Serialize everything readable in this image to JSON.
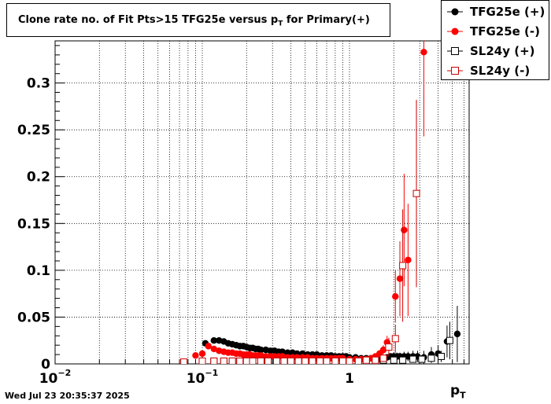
{
  "chart_data": {
    "type": "scatter",
    "title_main": "Clone rate no. of Fit Pts>15 TFG25e versus p",
    "title_sub": "T",
    "title_tail": " for Primary(+)",
    "xlabel_main": "p",
    "xlabel_sub": "T",
    "x_log": true,
    "xlim": [
      0.01,
      6.5
    ],
    "ylim": [
      0,
      0.345
    ],
    "grid": true,
    "legend_position": "top-right",
    "x_ticks": [
      {
        "value": 0.01,
        "label_base": "10",
        "label_exp": "−2"
      },
      {
        "value": 0.1,
        "label_base": "10",
        "label_exp": "−1"
      },
      {
        "value": 1,
        "label_base": "1",
        "label_exp": ""
      }
    ],
    "y_ticks": [
      {
        "value": 0,
        "label": "0"
      },
      {
        "value": 0.05,
        "label": "0.05"
      },
      {
        "value": 0.1,
        "label": "0.1"
      },
      {
        "value": 0.15,
        "label": "0.15"
      },
      {
        "value": 0.2,
        "label": "0.2"
      },
      {
        "value": 0.25,
        "label": "0.25"
      },
      {
        "value": 0.3,
        "label": "0.3"
      }
    ],
    "series": [
      {
        "name": "TFG25e (+)",
        "color": "#000000",
        "marker": "circle-filled",
        "points": [
          {
            "x": 0.105,
            "y": 0.022,
            "e": 0.002
          },
          {
            "x": 0.12,
            "y": 0.025,
            "e": 0.002
          },
          {
            "x": 0.13,
            "y": 0.025,
            "e": 0.002
          },
          {
            "x": 0.14,
            "y": 0.024,
            "e": 0.002
          },
          {
            "x": 0.15,
            "y": 0.022,
            "e": 0.002
          },
          {
            "x": 0.16,
            "y": 0.021,
            "e": 0.002
          },
          {
            "x": 0.17,
            "y": 0.02,
            "e": 0.002
          },
          {
            "x": 0.18,
            "y": 0.019,
            "e": 0.002
          },
          {
            "x": 0.19,
            "y": 0.019,
            "e": 0.002
          },
          {
            "x": 0.2,
            "y": 0.018,
            "e": 0.002
          },
          {
            "x": 0.21,
            "y": 0.017,
            "e": 0.002
          },
          {
            "x": 0.22,
            "y": 0.017,
            "e": 0.002
          },
          {
            "x": 0.23,
            "y": 0.016,
            "e": 0.002
          },
          {
            "x": 0.24,
            "y": 0.016,
            "e": 0.002
          },
          {
            "x": 0.25,
            "y": 0.015,
            "e": 0.002
          },
          {
            "x": 0.27,
            "y": 0.015,
            "e": 0.002
          },
          {
            "x": 0.29,
            "y": 0.014,
            "e": 0.002
          },
          {
            "x": 0.31,
            "y": 0.014,
            "e": 0.002
          },
          {
            "x": 0.33,
            "y": 0.013,
            "e": 0.002
          },
          {
            "x": 0.35,
            "y": 0.013,
            "e": 0.002
          },
          {
            "x": 0.38,
            "y": 0.012,
            "e": 0.002
          },
          {
            "x": 0.41,
            "y": 0.012,
            "e": 0.002
          },
          {
            "x": 0.44,
            "y": 0.011,
            "e": 0.002
          },
          {
            "x": 0.48,
            "y": 0.011,
            "e": 0.002
          },
          {
            "x": 0.52,
            "y": 0.01,
            "e": 0.002
          },
          {
            "x": 0.56,
            "y": 0.01,
            "e": 0.002
          },
          {
            "x": 0.6,
            "y": 0.01,
            "e": 0.002
          },
          {
            "x": 0.65,
            "y": 0.009,
            "e": 0.002
          },
          {
            "x": 0.7,
            "y": 0.009,
            "e": 0.002
          },
          {
            "x": 0.75,
            "y": 0.009,
            "e": 0.002
          },
          {
            "x": 0.8,
            "y": 0.008,
            "e": 0.002
          },
          {
            "x": 0.85,
            "y": 0.008,
            "e": 0.002
          },
          {
            "x": 0.9,
            "y": 0.008,
            "e": 0.002
          },
          {
            "x": 0.95,
            "y": 0.008,
            "e": 0.002
          },
          {
            "x": 1.0,
            "y": 0.007,
            "e": 0.002
          },
          {
            "x": 1.1,
            "y": 0.007,
            "e": 0.002
          },
          {
            "x": 1.2,
            "y": 0.006,
            "e": 0.002
          },
          {
            "x": 1.3,
            "y": 0.006,
            "e": 0.002
          },
          {
            "x": 1.4,
            "y": 0.006,
            "e": 0.002
          },
          {
            "x": 1.5,
            "y": 0.005,
            "e": 0.002
          },
          {
            "x": 1.6,
            "y": 0.005,
            "e": 0.002
          },
          {
            "x": 1.7,
            "y": 0.006,
            "e": 0.003
          },
          {
            "x": 1.8,
            "y": 0.007,
            "e": 0.003
          },
          {
            "x": 1.9,
            "y": 0.008,
            "e": 0.003
          },
          {
            "x": 2.0,
            "y": 0.008,
            "e": 0.004
          },
          {
            "x": 2.1,
            "y": 0.008,
            "e": 0.004
          },
          {
            "x": 2.2,
            "y": 0.008,
            "e": 0.004
          },
          {
            "x": 2.35,
            "y": 0.008,
            "e": 0.005
          },
          {
            "x": 2.5,
            "y": 0.008,
            "e": 0.005
          },
          {
            "x": 2.7,
            "y": 0.008,
            "e": 0.006
          },
          {
            "x": 2.9,
            "y": 0.008,
            "e": 0.006
          },
          {
            "x": 3.2,
            "y": 0.007,
            "e": 0.007
          },
          {
            "x": 3.6,
            "y": 0.01,
            "e": 0.008
          },
          {
            "x": 4.0,
            "y": 0.011,
            "e": 0.009
          },
          {
            "x": 4.6,
            "y": 0.024,
            "e": 0.017
          },
          {
            "x": 5.4,
            "y": 0.032,
            "e": 0.03
          }
        ]
      },
      {
        "name": "TFG25e (-)",
        "color": "#ff0000",
        "marker": "circle-filled",
        "points": [
          {
            "x": 0.075,
            "y": 0.001,
            "e": 0.001
          },
          {
            "x": 0.09,
            "y": 0.009,
            "e": 0.002
          },
          {
            "x": 0.1,
            "y": 0.011,
            "e": 0.002
          },
          {
            "x": 0.11,
            "y": 0.019,
            "e": 0.002
          },
          {
            "x": 0.12,
            "y": 0.016,
            "e": 0.002
          },
          {
            "x": 0.13,
            "y": 0.014,
            "e": 0.002
          },
          {
            "x": 0.14,
            "y": 0.013,
            "e": 0.002
          },
          {
            "x": 0.15,
            "y": 0.012,
            "e": 0.002
          },
          {
            "x": 0.16,
            "y": 0.012,
            "e": 0.002
          },
          {
            "x": 0.17,
            "y": 0.011,
            "e": 0.002
          },
          {
            "x": 0.18,
            "y": 0.011,
            "e": 0.002
          },
          {
            "x": 0.19,
            "y": 0.01,
            "e": 0.002
          },
          {
            "x": 0.2,
            "y": 0.01,
            "e": 0.002
          },
          {
            "x": 0.21,
            "y": 0.01,
            "e": 0.002
          },
          {
            "x": 0.22,
            "y": 0.009,
            "e": 0.002
          },
          {
            "x": 0.23,
            "y": 0.009,
            "e": 0.002
          },
          {
            "x": 0.24,
            "y": 0.009,
            "e": 0.002
          },
          {
            "x": 0.25,
            "y": 0.009,
            "e": 0.002
          },
          {
            "x": 0.27,
            "y": 0.008,
            "e": 0.002
          },
          {
            "x": 0.29,
            "y": 0.008,
            "e": 0.002
          },
          {
            "x": 0.31,
            "y": 0.008,
            "e": 0.002
          },
          {
            "x": 0.33,
            "y": 0.008,
            "e": 0.002
          },
          {
            "x": 0.35,
            "y": 0.008,
            "e": 0.002
          },
          {
            "x": 0.38,
            "y": 0.007,
            "e": 0.002
          },
          {
            "x": 0.41,
            "y": 0.007,
            "e": 0.002
          },
          {
            "x": 0.44,
            "y": 0.007,
            "e": 0.002
          },
          {
            "x": 0.48,
            "y": 0.007,
            "e": 0.002
          },
          {
            "x": 0.52,
            "y": 0.007,
            "e": 0.002
          },
          {
            "x": 0.56,
            "y": 0.006,
            "e": 0.002
          },
          {
            "x": 0.6,
            "y": 0.006,
            "e": 0.002
          },
          {
            "x": 0.65,
            "y": 0.006,
            "e": 0.002
          },
          {
            "x": 0.7,
            "y": 0.006,
            "e": 0.002
          },
          {
            "x": 0.75,
            "y": 0.006,
            "e": 0.002
          },
          {
            "x": 0.8,
            "y": 0.006,
            "e": 0.002
          },
          {
            "x": 0.85,
            "y": 0.006,
            "e": 0.002
          },
          {
            "x": 0.9,
            "y": 0.006,
            "e": 0.002
          },
          {
            "x": 1.0,
            "y": 0.005,
            "e": 0.002
          },
          {
            "x": 1.1,
            "y": 0.005,
            "e": 0.002
          },
          {
            "x": 1.2,
            "y": 0.005,
            "e": 0.002
          },
          {
            "x": 1.3,
            "y": 0.005,
            "e": 0.002
          },
          {
            "x": 1.4,
            "y": 0.006,
            "e": 0.003
          },
          {
            "x": 1.5,
            "y": 0.008,
            "e": 0.003
          },
          {
            "x": 1.6,
            "y": 0.011,
            "e": 0.004
          },
          {
            "x": 1.7,
            "y": 0.015,
            "e": 0.005
          },
          {
            "x": 1.8,
            "y": 0.023,
            "e": 0.007
          },
          {
            "x": 2.05,
            "y": 0.072,
            "e": 0.028
          },
          {
            "x": 2.2,
            "y": 0.091,
            "e": 0.04
          },
          {
            "x": 2.35,
            "y": 0.143,
            "e": 0.06
          },
          {
            "x": 2.5,
            "y": 0.111,
            "e": 0.06
          },
          {
            "x": 3.2,
            "y": 0.333,
            "e": 0.09
          }
        ]
      },
      {
        "name": "SL24y (+)",
        "color": "#000000",
        "marker": "square-open",
        "points": [
          {
            "x": 0.12,
            "y": 0.003,
            "e": 0.001
          },
          {
            "x": 0.14,
            "y": 0.003,
            "e": 0.001
          },
          {
            "x": 0.16,
            "y": 0.003,
            "e": 0.001
          },
          {
            "x": 0.18,
            "y": 0.003,
            "e": 0.001
          },
          {
            "x": 0.2,
            "y": 0.003,
            "e": 0.001
          },
          {
            "x": 0.22,
            "y": 0.003,
            "e": 0.001
          },
          {
            "x": 0.25,
            "y": 0.003,
            "e": 0.001
          },
          {
            "x": 0.28,
            "y": 0.003,
            "e": 0.001
          },
          {
            "x": 0.32,
            "y": 0.003,
            "e": 0.001
          },
          {
            "x": 0.36,
            "y": 0.003,
            "e": 0.001
          },
          {
            "x": 0.4,
            "y": 0.003,
            "e": 0.001
          },
          {
            "x": 0.45,
            "y": 0.003,
            "e": 0.001
          },
          {
            "x": 0.5,
            "y": 0.003,
            "e": 0.001
          },
          {
            "x": 0.56,
            "y": 0.003,
            "e": 0.001
          },
          {
            "x": 0.63,
            "y": 0.003,
            "e": 0.001
          },
          {
            "x": 0.7,
            "y": 0.003,
            "e": 0.001
          },
          {
            "x": 0.8,
            "y": 0.003,
            "e": 0.001
          },
          {
            "x": 0.9,
            "y": 0.003,
            "e": 0.001
          },
          {
            "x": 1.0,
            "y": 0.003,
            "e": 0.001
          },
          {
            "x": 1.15,
            "y": 0.003,
            "e": 0.001
          },
          {
            "x": 1.3,
            "y": 0.003,
            "e": 0.001
          },
          {
            "x": 1.5,
            "y": 0.003,
            "e": 0.001
          },
          {
            "x": 1.7,
            "y": 0.004,
            "e": 0.002
          },
          {
            "x": 2.0,
            "y": 0.004,
            "e": 0.002
          },
          {
            "x": 2.3,
            "y": 0.004,
            "e": 0.002
          },
          {
            "x": 2.7,
            "y": 0.005,
            "e": 0.003
          },
          {
            "x": 3.1,
            "y": 0.005,
            "e": 0.004
          },
          {
            "x": 3.6,
            "y": 0.006,
            "e": 0.005
          },
          {
            "x": 4.2,
            "y": 0.008,
            "e": 0.006
          },
          {
            "x": 4.8,
            "y": 0.025,
            "e": 0.02
          }
        ]
      },
      {
        "name": "SL24y (-)",
        "color": "#cc0000",
        "marker": "square-open",
        "points": [
          {
            "x": 0.075,
            "y": 0.002,
            "e": 0.001
          },
          {
            "x": 0.1,
            "y": 0.003,
            "e": 0.001
          },
          {
            "x": 0.12,
            "y": 0.003,
            "e": 0.001
          },
          {
            "x": 0.14,
            "y": 0.003,
            "e": 0.001
          },
          {
            "x": 0.16,
            "y": 0.003,
            "e": 0.001
          },
          {
            "x": 0.18,
            "y": 0.003,
            "e": 0.001
          },
          {
            "x": 0.2,
            "y": 0.003,
            "e": 0.001
          },
          {
            "x": 0.22,
            "y": 0.003,
            "e": 0.001
          },
          {
            "x": 0.25,
            "y": 0.003,
            "e": 0.001
          },
          {
            "x": 0.28,
            "y": 0.003,
            "e": 0.001
          },
          {
            "x": 0.32,
            "y": 0.003,
            "e": 0.001
          },
          {
            "x": 0.36,
            "y": 0.003,
            "e": 0.001
          },
          {
            "x": 0.4,
            "y": 0.003,
            "e": 0.001
          },
          {
            "x": 0.45,
            "y": 0.003,
            "e": 0.001
          },
          {
            "x": 0.5,
            "y": 0.003,
            "e": 0.001
          },
          {
            "x": 0.56,
            "y": 0.003,
            "e": 0.001
          },
          {
            "x": 0.63,
            "y": 0.003,
            "e": 0.001
          },
          {
            "x": 0.7,
            "y": 0.003,
            "e": 0.001
          },
          {
            "x": 0.8,
            "y": 0.003,
            "e": 0.001
          },
          {
            "x": 0.9,
            "y": 0.003,
            "e": 0.001
          },
          {
            "x": 1.0,
            "y": 0.003,
            "e": 0.001
          },
          {
            "x": 1.15,
            "y": 0.003,
            "e": 0.001
          },
          {
            "x": 1.3,
            "y": 0.004,
            "e": 0.002
          },
          {
            "x": 1.5,
            "y": 0.004,
            "e": 0.002
          },
          {
            "x": 1.7,
            "y": 0.006,
            "e": 0.003
          },
          {
            "x": 1.85,
            "y": 0.018,
            "e": 0.01
          },
          {
            "x": 2.05,
            "y": 0.027,
            "e": 0.015
          },
          {
            "x": 2.3,
            "y": 0.105,
            "e": 0.06
          },
          {
            "x": 2.85,
            "y": 0.182,
            "e": 0.1
          }
        ]
      }
    ]
  },
  "footer": {
    "timestamp": "Wed Jul 23 20:35:37 2025"
  }
}
